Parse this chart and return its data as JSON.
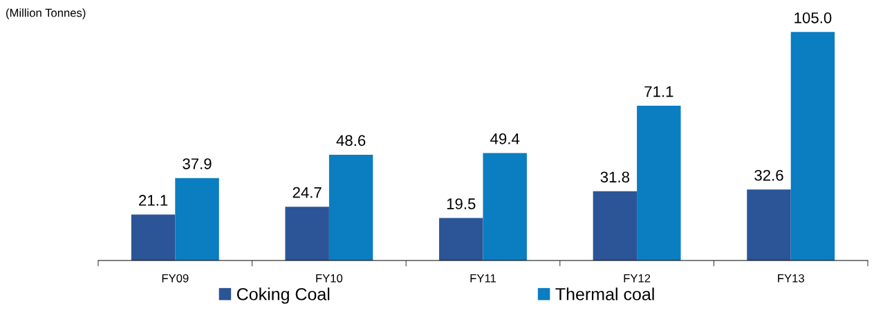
{
  "chart_data": {
    "type": "bar",
    "ylabel": "(Million Tonnes)",
    "categories": [
      "FY09",
      "FY10",
      "FY11",
      "FY12",
      "FY13"
    ],
    "series": [
      {
        "name": "Coking Coal",
        "color": "#2b5597",
        "values": [
          21.1,
          24.7,
          19.5,
          31.8,
          32.6
        ],
        "value_labels": [
          "21.1",
          "24.7",
          "19.5",
          "31.8",
          "32.6"
        ]
      },
      {
        "name": "Thermal coal",
        "color": "#0b7dc1",
        "values": [
          37.9,
          48.6,
          49.4,
          71.1,
          105.0
        ],
        "value_labels": [
          "37.9",
          "48.6",
          "49.4",
          "71.1",
          "105.0"
        ]
      }
    ],
    "legend": "bottom",
    "grid": false,
    "tick_labels": "x"
  }
}
